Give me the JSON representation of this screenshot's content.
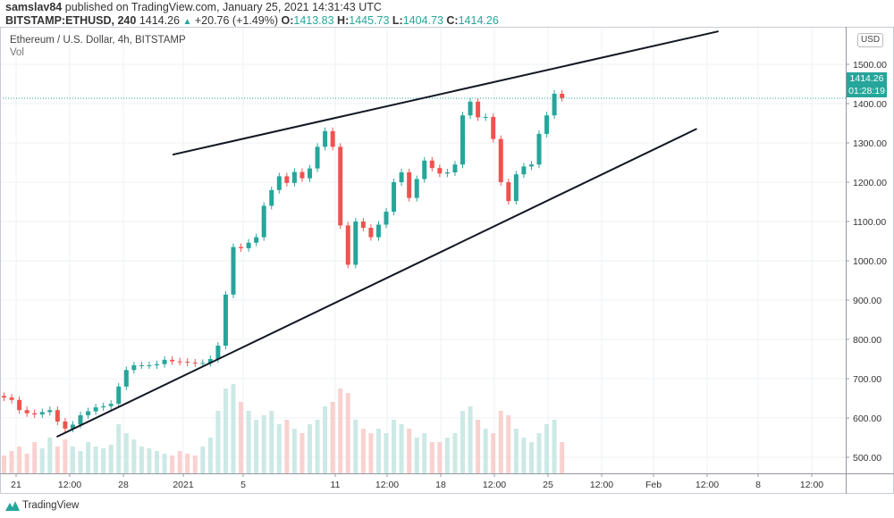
{
  "header": {
    "author": "samslav84",
    "published_text": "published on TradingView.com, January 25, 2021 14:31:43 UTC",
    "symbol": "BITSTAMP:ETHUSD, 240",
    "last": "1414.26",
    "change": "+20.76 (+1.49%)",
    "o_label": "O:",
    "o": "1413.83",
    "h_label": "H:",
    "h": "1445.73",
    "l_label": "L:",
    "l": "1404.73",
    "c_label": "C:",
    "c": "1414.26"
  },
  "legend": {
    "title": "Ethereum / U.S. Dollar, 4h, BITSTAMP",
    "vol": "Vol"
  },
  "price_axis": {
    "currency": "USD",
    "last_price": "1414.26",
    "countdown": "01:28:19"
  },
  "footer": {
    "brand": "TradingView"
  },
  "colors": {
    "up": "#26a69a",
    "down": "#ef5350",
    "trendline": "#131722",
    "grid": "#eef0f5"
  },
  "chart_data": {
    "type": "candlestick",
    "title": "Ethereum / U.S. Dollar, 4h, BITSTAMP",
    "start": "2020-12-20 00:00",
    "interval_hours": 12,
    "close": [
      652,
      646,
      620,
      612,
      609,
      615,
      620,
      591,
      573,
      583,
      607,
      617,
      627,
      630,
      636,
      680,
      722,
      734,
      734,
      734,
      737,
      748,
      744,
      743,
      741,
      739,
      740,
      750,
      784,
      914,
      1035,
      1032,
      1046,
      1060,
      1140,
      1180,
      1215,
      1198,
      1226,
      1210,
      1235,
      1290,
      1330,
      1290,
      1090,
      990,
      1100,
      1084,
      1060,
      1092,
      1125,
      1200,
      1225,
      1160,
      1208,
      1255,
      1236,
      1222,
      1225,
      1245,
      1370,
      1405,
      1365,
      1366,
      1310,
      1200,
      1152,
      1220,
      1240,
      1245,
      1323,
      1370,
      1425,
      1414.26
    ],
    "volume_relative": [
      20,
      25,
      30,
      22,
      35,
      28,
      40,
      30,
      38,
      30,
      25,
      35,
      30,
      28,
      32,
      55,
      45,
      38,
      30,
      28,
      25,
      22,
      20,
      25,
      22,
      20,
      30,
      40,
      70,
      95,
      100,
      80,
      70,
      60,
      65,
      70,
      55,
      60,
      50,
      45,
      55,
      60,
      75,
      80,
      95,
      90,
      60,
      50,
      45,
      50,
      45,
      60,
      55,
      50,
      40,
      45,
      35,
      35,
      40,
      45,
      70,
      75,
      60,
      50,
      45,
      70,
      65,
      50,
      40,
      35,
      45,
      55,
      60,
      35
    ],
    "y_ticks": [
      "500.00",
      "600.00",
      "700.00",
      "800.00",
      "900.00",
      "1000.00",
      "1100.00",
      "1200.00",
      "1300.00",
      "1400.00",
      "1500.00"
    ],
    "ylim": [
      460,
      1600
    ],
    "x_ticks": [
      "21",
      "12:00",
      "28",
      "2021",
      "5",
      "11",
      "12:00",
      "18",
      "12:00",
      "25",
      "12:00",
      "Feb",
      "12:00",
      "8",
      "12:00"
    ],
    "trendlines": [
      {
        "from": {
          "time": "2020-12-31 07:00",
          "price": 1270
        },
        "to": {
          "time": "2021-02-05 00:00",
          "price": 1584
        }
      },
      {
        "from": {
          "time": "2020-12-23 17:00",
          "price": 552
        },
        "to": {
          "time": "2021-02-03 14:00",
          "price": 1336
        }
      }
    ],
    "grid": true
  }
}
